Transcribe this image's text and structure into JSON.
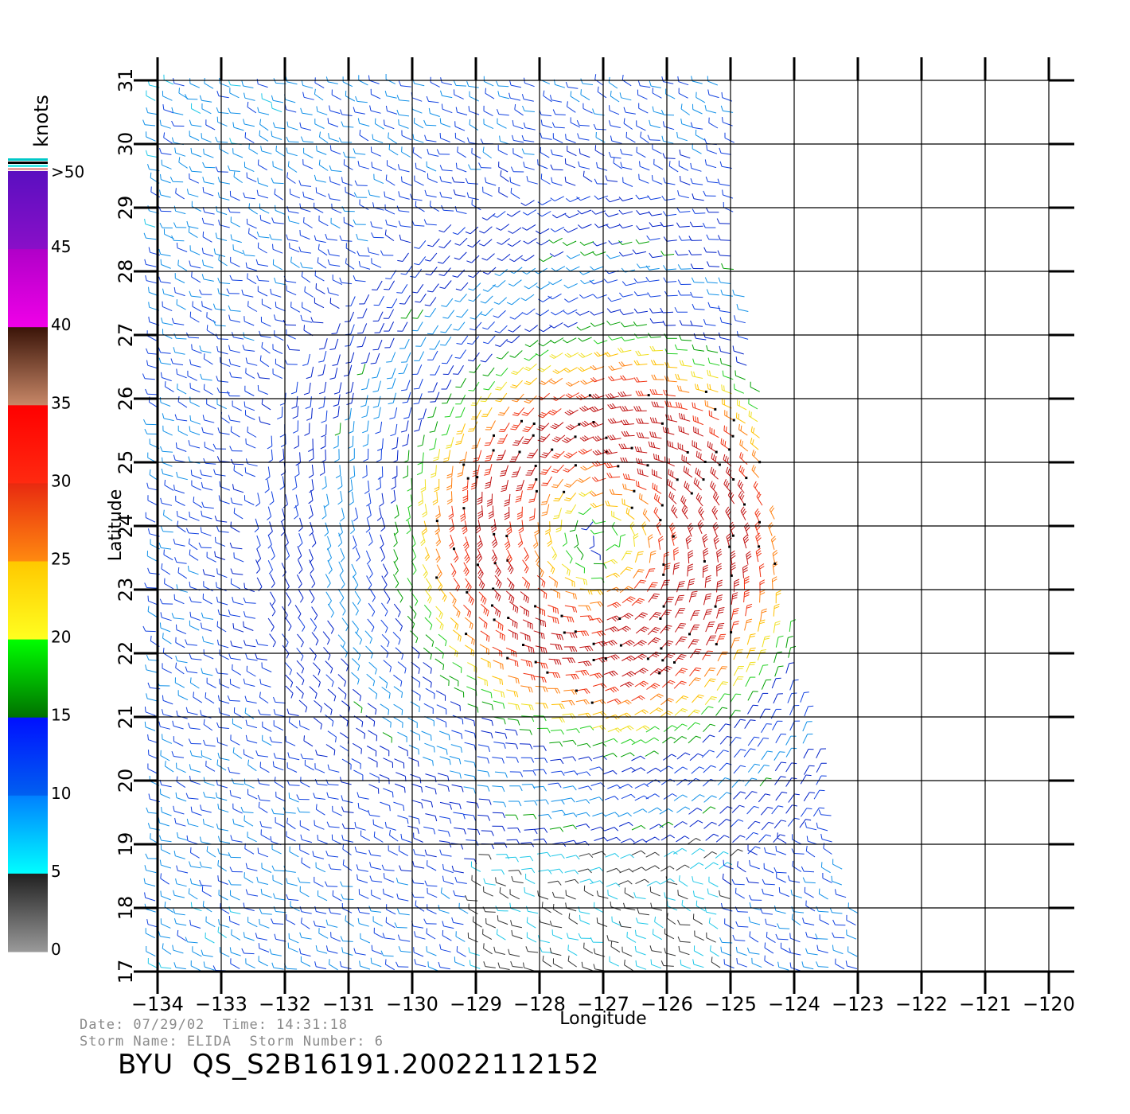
{
  "map": {
    "xlabel": "Longitude",
    "ylabel": "Latitude",
    "lon_ticks": [
      -134,
      -133,
      -132,
      -131,
      -130,
      -129,
      -128,
      -127,
      -126,
      -125,
      -124,
      -123,
      -122,
      -121,
      -120
    ],
    "lat_ticks": [
      17,
      18,
      19,
      20,
      21,
      22,
      23,
      24,
      25,
      26,
      27,
      28,
      29,
      30,
      31
    ],
    "lon_range": [
      -134,
      -120
    ],
    "lat_range": [
      17,
      31
    ],
    "grid": true
  },
  "wind_field": {
    "type": "wind barbs",
    "center_lon": -127.0,
    "center_lat": 23.8,
    "swath_east_edge": [
      {
        "lat": 31,
        "lon": -125
      },
      {
        "lat": 28,
        "lon": -124.8
      },
      {
        "lat": 26,
        "lon": -124.5
      },
      {
        "lat": 23,
        "lon": -124.2
      },
      {
        "lat": 21,
        "lon": -123.8
      },
      {
        "lat": 19,
        "lon": -123.3
      },
      {
        "lat": 17.5,
        "lon": -122.8
      }
    ],
    "max_speed_knots": 35
  },
  "colorbar": {
    "unit_label": "knots",
    "tick_labels": [
      ">50",
      "45",
      "40",
      "35",
      "30",
      "25",
      "20",
      "15",
      "10",
      "5",
      "0"
    ],
    "bands": [
      {
        "range": "45-50",
        "colors": [
          "#5a0fc0",
          "#8a0fc8"
        ]
      },
      {
        "range": "40-45",
        "colors": [
          "#b000c8",
          "#f000e8"
        ]
      },
      {
        "range": "35-40",
        "colors": [
          "#3a1408",
          "#c88868"
        ]
      },
      {
        "range": "30-35",
        "colors": [
          "#ff0000",
          "#ff2a10"
        ]
      },
      {
        "range": "25-30",
        "colors": [
          "#e82a10",
          "#ff8a10"
        ]
      },
      {
        "range": "20-25",
        "colors": [
          "#ffc800",
          "#ffff20"
        ]
      },
      {
        "range": "15-20",
        "colors": [
          "#00ff00",
          "#007000"
        ]
      },
      {
        "range": "10-15",
        "colors": [
          "#0010ff",
          "#0060f0"
        ]
      },
      {
        "range": "5-10",
        "colors": [
          "#0080ff",
          "#00ffff"
        ]
      },
      {
        "range": "0-5",
        "colors": [
          "#202020",
          "#9a9a9a"
        ]
      }
    ]
  },
  "info": {
    "date_line": "Date: 07/29/02  Time: 14:31:18",
    "storm_line": "Storm Name: ELIDA  Storm Number: 6",
    "product_line": "BYU  QS_S2B16191.20022112152"
  }
}
